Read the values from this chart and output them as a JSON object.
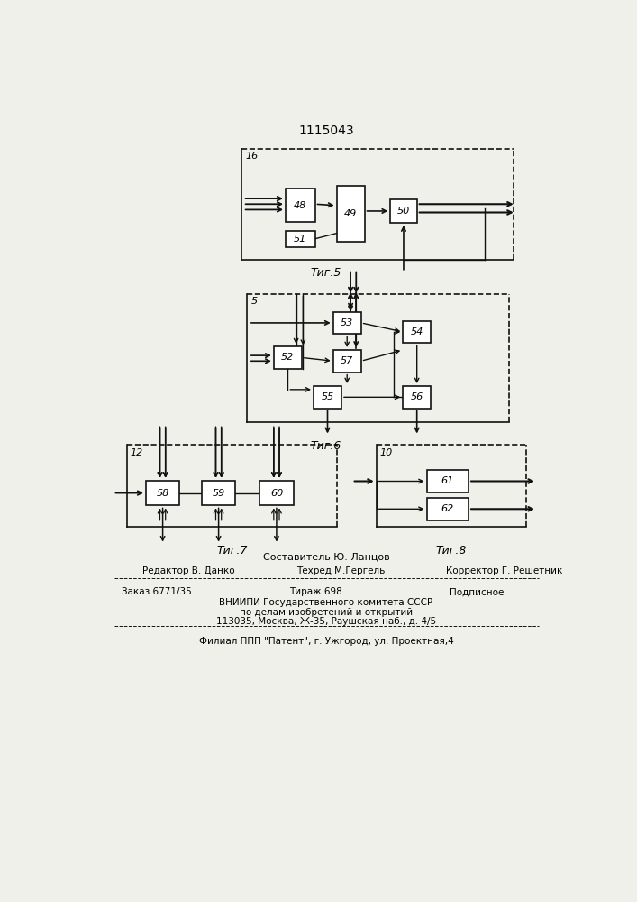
{
  "title": "1115043",
  "fig5_label": "16",
  "fig5_caption": "Τиг.5",
  "fig6_label": "5",
  "fig6_caption": "Τиг.6",
  "fig7_label": "12",
  "fig7_caption": "Τиг.7",
  "fig8_label": "10",
  "fig8_caption": "Τиг.8",
  "footer_line1": "Составитель Ю. Ланцов",
  "footer_line2_left": "Редактор В. Данко",
  "footer_line2_mid": "Техред М.Гергель",
  "footer_line2_right": "Корректор Г. Решетник",
  "footer_line3_left": "Заказ 6771/35",
  "footer_line3_mid": "Тираж 698",
  "footer_line3_right": "Подписное",
  "footer_line4": "ВНИИПИ Государственного комитета СССР",
  "footer_line5": "по делам изобретений и открытий",
  "footer_line6": "113035, Москва, Ж-35, Раушская наб., д. 4/5",
  "footer_line7": "Филиал ППП \"Патент\", г. Ужгород, ул. Проектная,4",
  "bg_color": "#f0f0eb",
  "box_color": "#111111",
  "line_color": "#111111"
}
